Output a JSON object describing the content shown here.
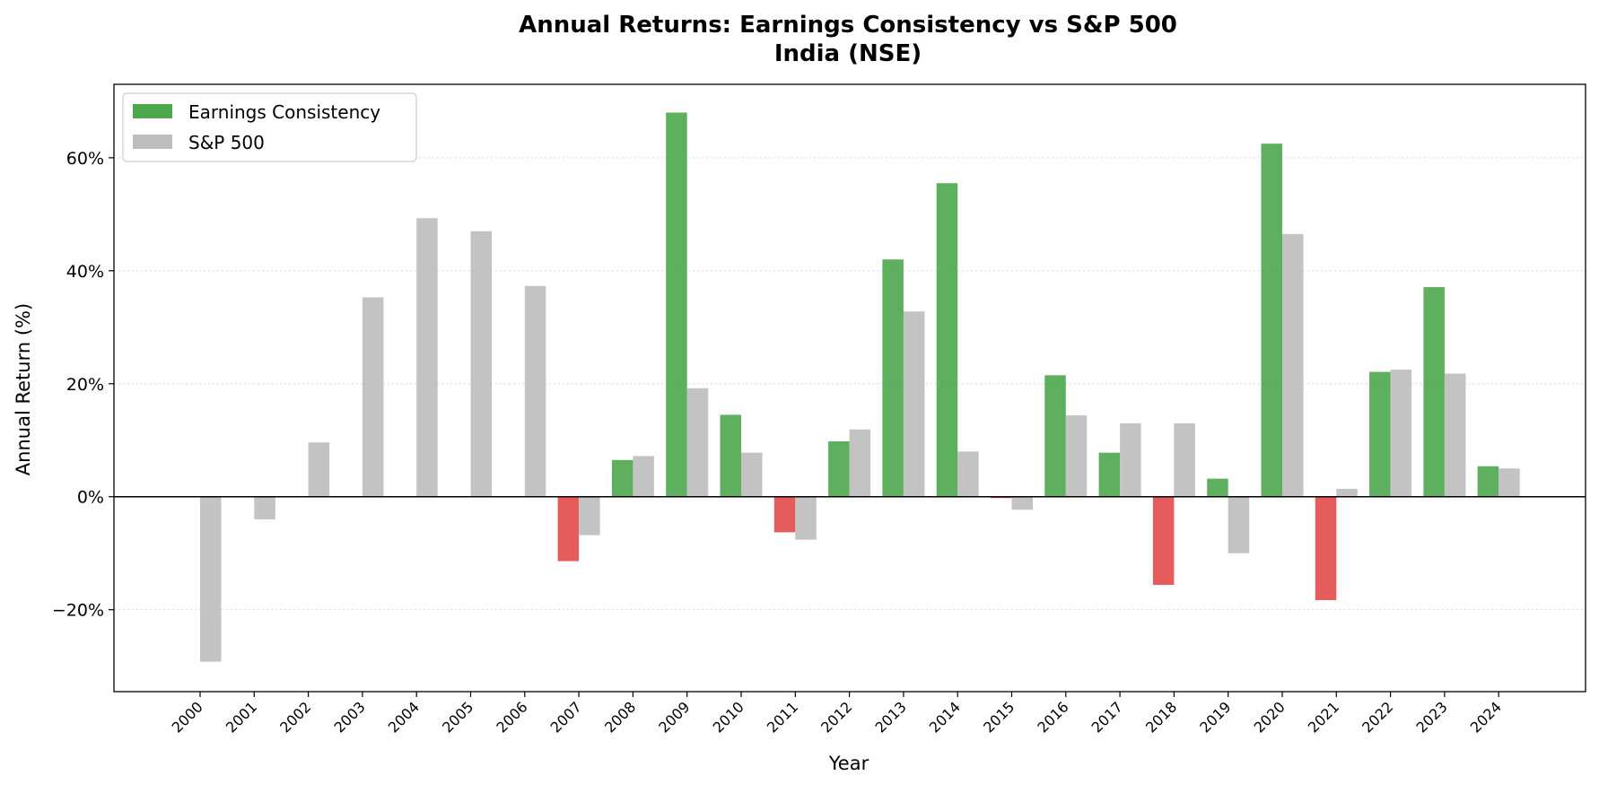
{
  "chart_data": {
    "type": "bar",
    "title": "Annual Returns: Earnings Consistency vs S&P 500",
    "subtitle": "India (NSE)",
    "xlabel": "Year",
    "ylabel": "Annual Return (%)",
    "ylim": [
      -34.5,
      73
    ],
    "yticks": [
      -20,
      0,
      20,
      40,
      60
    ],
    "ytick_labels": [
      "−20%",
      "0%",
      "20%",
      "40%",
      "60%"
    ],
    "grid": true,
    "legend_position": "upper-left",
    "categories": [
      "2000",
      "2001",
      "2002",
      "2003",
      "2004",
      "2005",
      "2006",
      "2007",
      "2008",
      "2009",
      "2010",
      "2011",
      "2012",
      "2013",
      "2014",
      "2015",
      "2016",
      "2017",
      "2018",
      "2019",
      "2020",
      "2021",
      "2022",
      "2023",
      "2024"
    ],
    "series": [
      {
        "name": "Earnings Consistency",
        "color_positive": "#4ca64c",
        "color_negative": "#e34a4a",
        "values": [
          null,
          null,
          null,
          null,
          null,
          null,
          null,
          -11.4,
          6.5,
          68.0,
          14.5,
          -6.3,
          9.8,
          42.0,
          55.5,
          -0.2,
          21.5,
          7.8,
          -15.6,
          3.2,
          62.5,
          -18.3,
          22.1,
          37.1,
          5.4
        ]
      },
      {
        "name": "S&P 500",
        "color": "#bdbdbd",
        "values": [
          -29.2,
          -4.0,
          9.6,
          35.3,
          49.3,
          47.0,
          37.3,
          -6.8,
          7.2,
          19.2,
          7.8,
          -7.6,
          11.9,
          32.8,
          8.0,
          -2.3,
          14.4,
          13.0,
          13.0,
          -10.0,
          46.5,
          1.4,
          22.5,
          21.8,
          5.0
        ]
      }
    ]
  }
}
